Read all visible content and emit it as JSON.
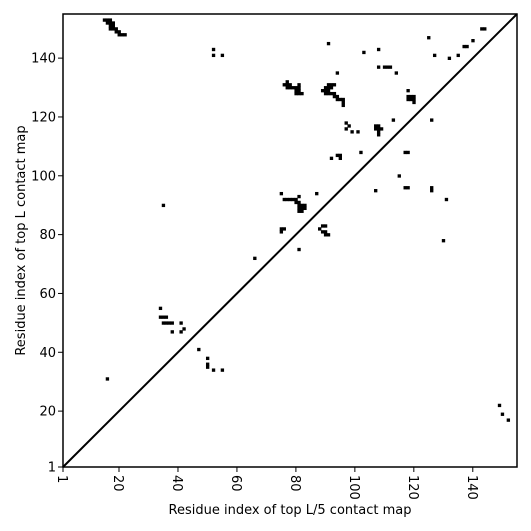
{
  "chart_data": {
    "type": "scatter",
    "title": "",
    "xlabel": "Residue index of top L/5 contact map",
    "ylabel": "Residue index of top L contact map",
    "xlim": [
      1,
      155
    ],
    "ylim": [
      1,
      155
    ],
    "x_ticks": [
      1,
      20,
      40,
      60,
      80,
      100,
      120,
      140
    ],
    "y_ticks": [
      1,
      20,
      40,
      60,
      80,
      100,
      120,
      140
    ],
    "x_tick_labels": [
      "1",
      "20",
      "40",
      "60",
      "80",
      "100",
      "120",
      "140"
    ],
    "y_tick_labels": [
      "1",
      "20",
      "40",
      "60",
      "80",
      "100",
      "120",
      "140"
    ],
    "x_tick_label_rotation": 90,
    "diagonal": true,
    "marker": "square",
    "marker_color": "#000000",
    "grid": false,
    "series": [
      {
        "name": "",
        "points": [
          [
            15,
            153
          ],
          [
            16,
            153
          ],
          [
            17,
            153
          ],
          [
            16,
            152
          ],
          [
            17,
            152
          ],
          [
            18,
            152
          ],
          [
            17,
            151
          ],
          [
            18,
            151
          ],
          [
            17,
            150
          ],
          [
            18,
            150
          ],
          [
            19,
            150
          ],
          [
            19,
            149
          ],
          [
            20,
            149
          ],
          [
            20,
            148
          ],
          [
            21,
            148
          ],
          [
            22,
            148
          ],
          [
            52,
            143
          ],
          [
            52,
            141
          ],
          [
            55,
            141
          ],
          [
            76,
            131
          ],
          [
            77,
            131
          ],
          [
            78,
            131
          ],
          [
            77,
            132
          ],
          [
            77,
            130
          ],
          [
            78,
            130
          ],
          [
            79,
            130
          ],
          [
            80,
            130
          ],
          [
            81,
            131
          ],
          [
            81,
            130
          ],
          [
            80,
            129
          ],
          [
            81,
            129
          ],
          [
            80,
            128
          ],
          [
            81,
            128
          ],
          [
            82,
            128
          ],
          [
            89,
            129
          ],
          [
            90,
            129
          ],
          [
            91,
            129
          ],
          [
            90,
            130
          ],
          [
            91,
            130
          ],
          [
            92,
            130
          ],
          [
            91,
            131
          ],
          [
            92,
            131
          ],
          [
            93,
            131
          ],
          [
            90,
            128
          ],
          [
            91,
            128
          ],
          [
            92,
            128
          ],
          [
            93,
            128
          ],
          [
            93,
            127
          ],
          [
            94,
            127
          ],
          [
            94,
            126
          ],
          [
            95,
            126
          ],
          [
            96,
            126
          ],
          [
            96,
            125
          ],
          [
            96,
            124
          ],
          [
            94,
            135
          ],
          [
            91,
            145
          ],
          [
            97,
            118
          ],
          [
            98,
            117
          ],
          [
            97,
            116
          ],
          [
            99,
            115
          ],
          [
            101,
            115
          ],
          [
            92,
            106
          ],
          [
            94,
            107
          ],
          [
            95,
            107
          ],
          [
            95,
            106
          ],
          [
            102,
            108
          ],
          [
            103,
            142
          ],
          [
            108,
            143
          ],
          [
            108,
            137
          ],
          [
            110,
            137
          ],
          [
            111,
            137
          ],
          [
            112,
            137
          ],
          [
            114,
            135
          ],
          [
            107,
            117
          ],
          [
            108,
            117
          ],
          [
            107,
            116
          ],
          [
            108,
            116
          ],
          [
            109,
            116
          ],
          [
            108,
            115
          ],
          [
            108,
            114
          ],
          [
            113,
            119
          ],
          [
            118,
            129
          ],
          [
            118,
            127
          ],
          [
            119,
            127
          ],
          [
            120,
            127
          ],
          [
            119,
            126
          ],
          [
            120,
            126
          ],
          [
            118,
            126
          ],
          [
            120,
            125
          ],
          [
            117,
            108
          ],
          [
            118,
            108
          ],
          [
            126,
            119
          ],
          [
            115,
            100
          ],
          [
            107,
            95
          ],
          [
            117,
            96
          ],
          [
            118,
            96
          ],
          [
            126,
            95
          ],
          [
            126,
            96
          ],
          [
            131,
            92
          ],
          [
            130,
            78
          ],
          [
            125,
            147
          ],
          [
            127,
            141
          ],
          [
            132,
            140
          ],
          [
            135,
            141
          ],
          [
            137,
            144
          ],
          [
            138,
            144
          ],
          [
            140,
            146
          ],
          [
            143,
            150
          ],
          [
            144,
            150
          ],
          [
            75,
            94
          ],
          [
            76,
            92
          ],
          [
            77,
            92
          ],
          [
            78,
            92
          ],
          [
            79,
            92
          ],
          [
            80,
            92
          ],
          [
            80,
            91
          ],
          [
            81,
            91
          ],
          [
            81,
            93
          ],
          [
            81,
            90
          ],
          [
            82,
            90
          ],
          [
            83,
            90
          ],
          [
            81,
            89
          ],
          [
            82,
            89
          ],
          [
            83,
            89
          ],
          [
            81,
            88
          ],
          [
            82,
            88
          ],
          [
            87,
            94
          ],
          [
            75,
            82
          ],
          [
            76,
            82
          ],
          [
            75,
            81
          ],
          [
            88,
            82
          ],
          [
            89,
            83
          ],
          [
            90,
            83
          ],
          [
            89,
            81
          ],
          [
            90,
            81
          ],
          [
            91,
            80
          ],
          [
            90,
            80
          ],
          [
            81,
            75
          ],
          [
            66,
            72
          ],
          [
            35,
            90
          ],
          [
            34,
            55
          ],
          [
            34,
            52
          ],
          [
            35,
            52
          ],
          [
            36,
            52
          ],
          [
            35,
            50
          ],
          [
            36,
            50
          ],
          [
            37,
            50
          ],
          [
            38,
            50
          ],
          [
            38,
            47
          ],
          [
            41,
            50
          ],
          [
            41,
            47
          ],
          [
            42,
            48
          ],
          [
            47,
            41
          ],
          [
            50,
            38
          ],
          [
            50,
            36
          ],
          [
            50,
            35
          ],
          [
            52,
            34
          ],
          [
            55,
            34
          ],
          [
            16,
            31
          ],
          [
            149,
            22
          ],
          [
            150,
            19
          ],
          [
            152,
            17
          ]
        ]
      }
    ]
  }
}
